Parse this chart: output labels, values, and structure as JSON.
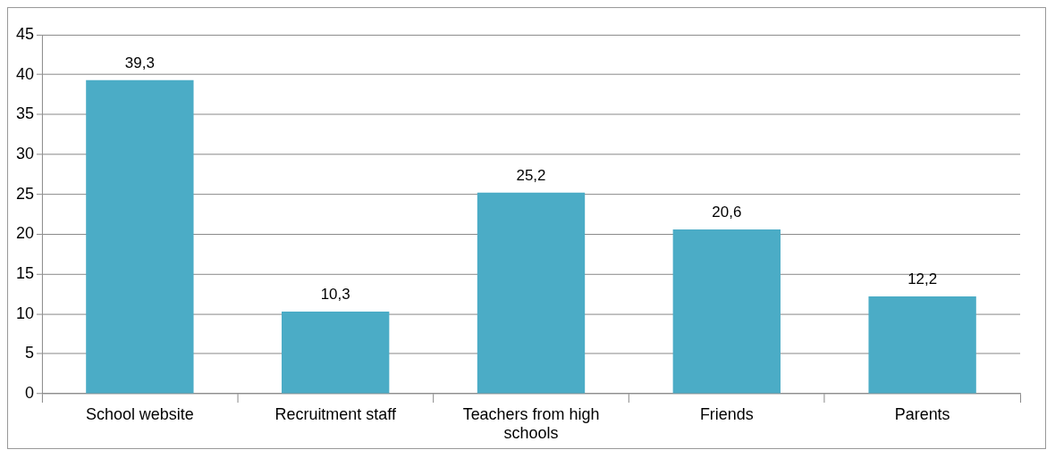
{
  "chart_data": {
    "type": "bar",
    "categories": [
      "School website",
      "Recruitment staff",
      "Teachers from high schools",
      "Friends",
      "Parents"
    ],
    "values": [
      39.3,
      10.3,
      25.2,
      20.6,
      12.2
    ],
    "value_labels": [
      "39,3",
      "10,3",
      "25,2",
      "20,6",
      "12,2"
    ],
    "color": "#4bacc6",
    "ylim": [
      0,
      45
    ],
    "yticks": [
      0,
      5,
      10,
      15,
      20,
      25,
      30,
      35,
      40,
      45
    ],
    "grid": "y",
    "legend": false
  }
}
